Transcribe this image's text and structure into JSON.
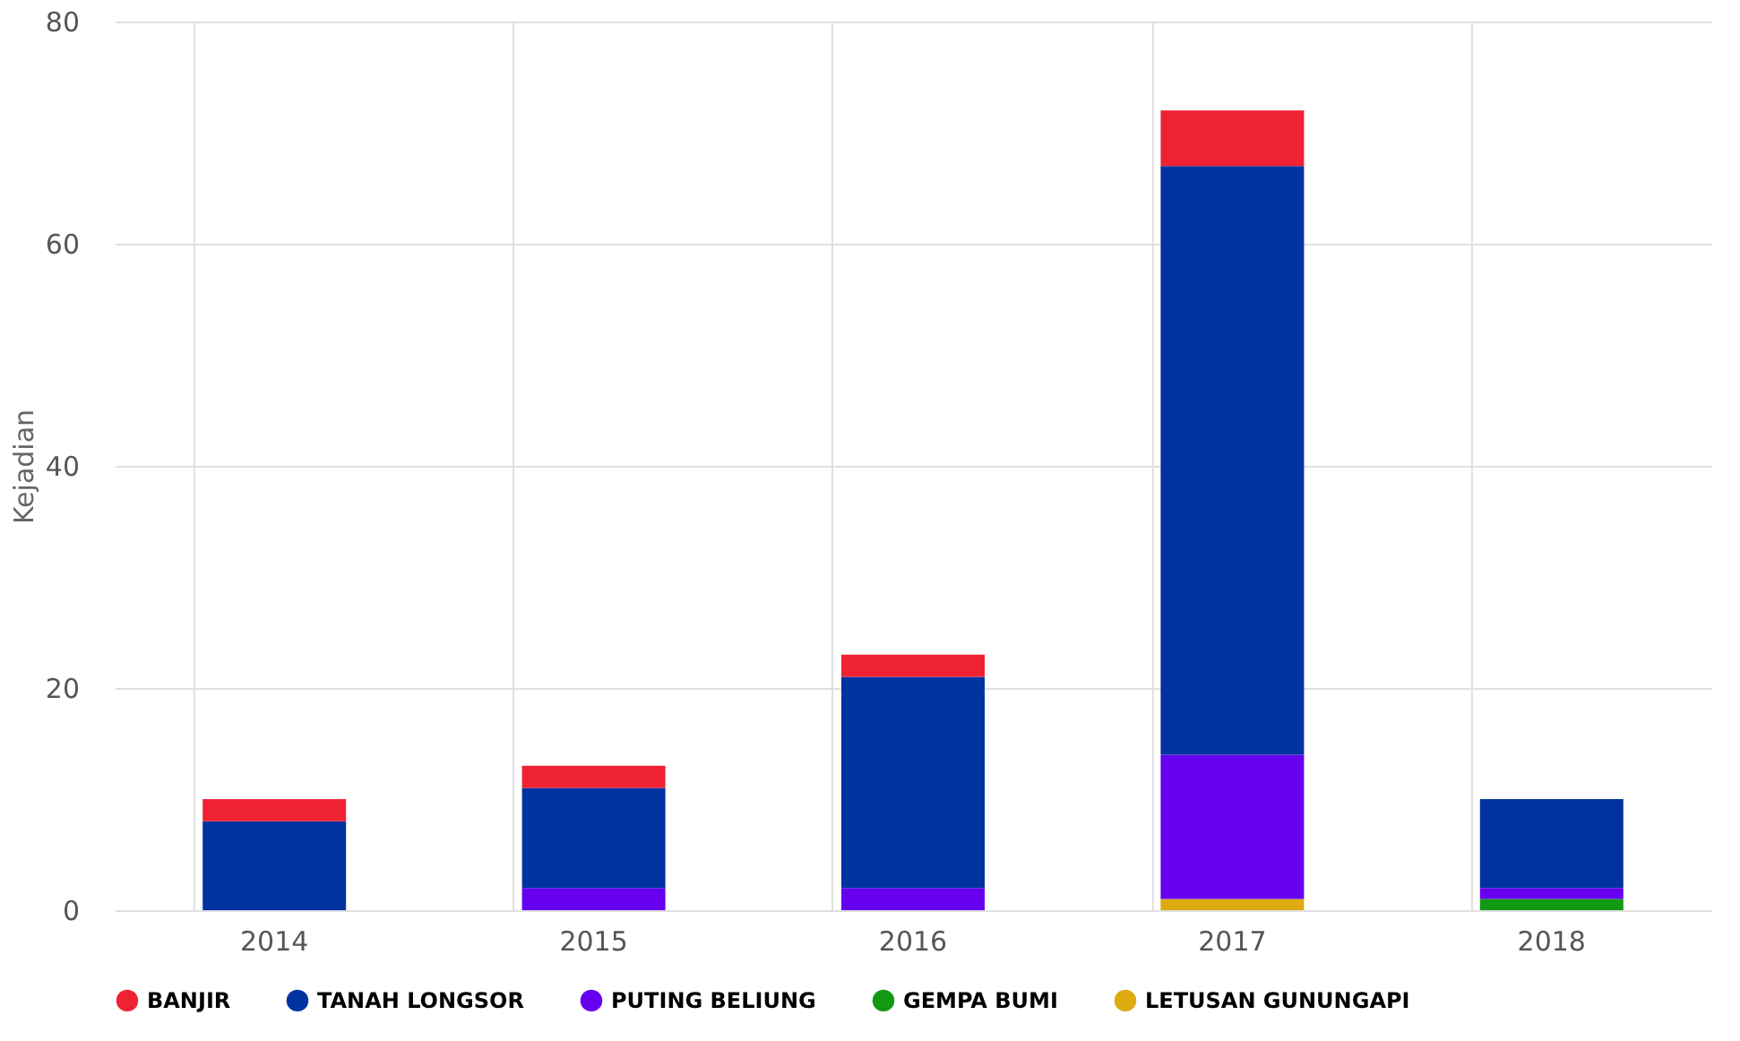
{
  "chart_data": {
    "type": "bar",
    "stacked": true,
    "ylabel": "Kejadian",
    "categories": [
      "2014",
      "2015",
      "2016",
      "2017",
      "2018"
    ],
    "series": [
      {
        "name": "LETUSAN GUNUNGAPI",
        "color": "#ddaa11",
        "values": [
          0,
          0,
          0,
          1,
          0
        ]
      },
      {
        "name": "GEMPA BUMI",
        "color": "#119911",
        "values": [
          0,
          0,
          0,
          0,
          1
        ]
      },
      {
        "name": "PUTING BELIUNG",
        "color": "#6600ee",
        "values": [
          0,
          2,
          2,
          13,
          1
        ]
      },
      {
        "name": "TANAH LONGSOR",
        "color": "#0033a0",
        "values": [
          8,
          9,
          19,
          53,
          8
        ]
      },
      {
        "name": "BANJIR",
        "color": "#ee2233",
        "values": [
          2,
          2,
          2,
          5,
          0
        ]
      }
    ],
    "ylim": [
      0,
      80
    ],
    "yticks": [
      0,
      20,
      40,
      60,
      80
    ],
    "grid": true,
    "legend": "bottom"
  }
}
